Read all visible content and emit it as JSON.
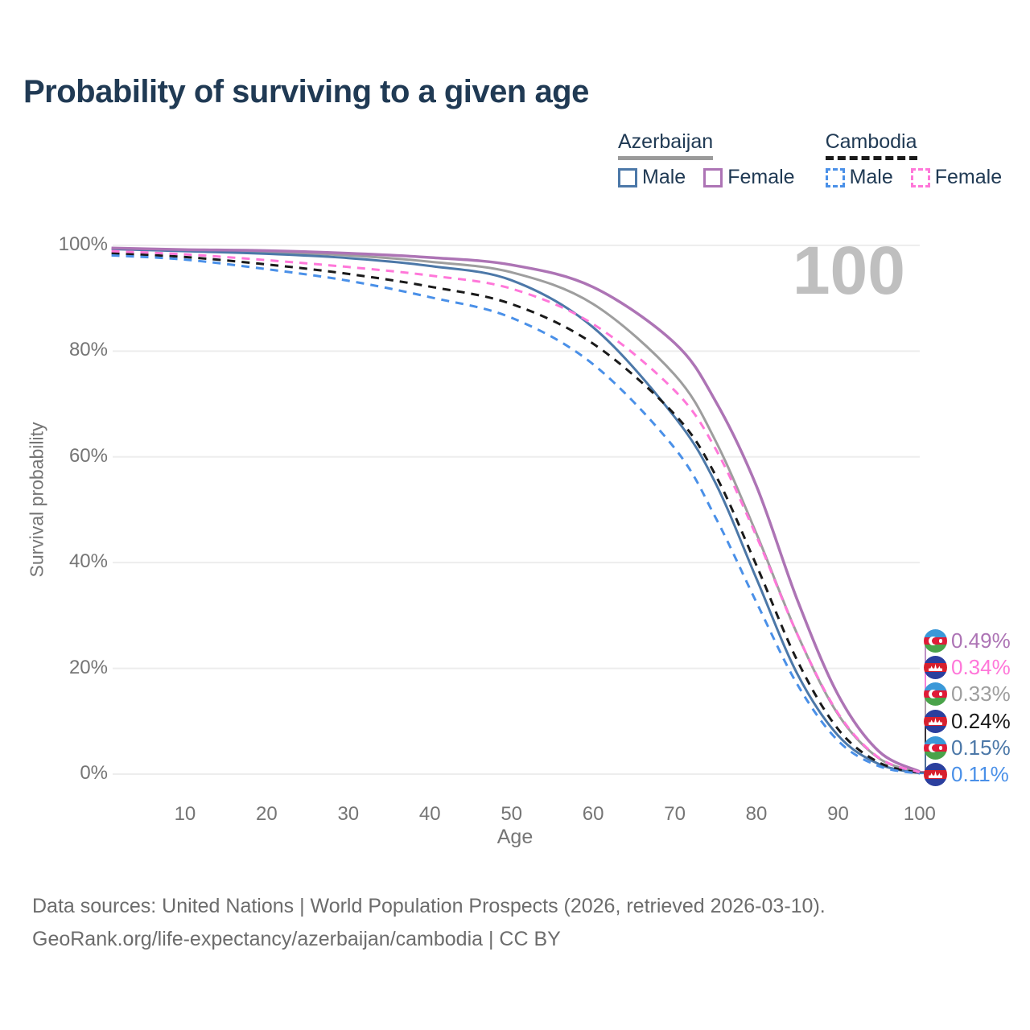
{
  "page": {
    "title": "Probability of surviving to a given age"
  },
  "legend": {
    "groups": [
      {
        "country": "Azerbaijan",
        "underline_style": "solid",
        "underline_color": "#9a9a9a",
        "items": [
          {
            "label": "Male",
            "color": "#4c78a8",
            "style": "solid"
          },
          {
            "label": "Female",
            "color": "#ad74b5",
            "style": "solid"
          }
        ]
      },
      {
        "country": "Cambodia",
        "underline_style": "dashed",
        "underline_color": "#1a1a1a",
        "items": [
          {
            "label": "Male",
            "color": "#4a90e8",
            "style": "dashed"
          },
          {
            "label": "Female",
            "color": "#ff77d9",
            "style": "dashed"
          }
        ]
      }
    ]
  },
  "watermark": "100",
  "chart_data": {
    "type": "line",
    "title": "Probability of surviving to a given age",
    "xlabel": "Age",
    "ylabel": "Survival probability",
    "xlim": [
      0,
      100
    ],
    "ylim": [
      0,
      100
    ],
    "grid": "horizontal",
    "x_ticks": [
      "10",
      "20",
      "30",
      "40",
      "50",
      "60",
      "70",
      "80",
      "90",
      "100"
    ],
    "x_tick_ages": [
      10,
      20,
      30,
      40,
      50,
      60,
      70,
      80,
      90,
      100
    ],
    "y_ticks": [
      "0%",
      "20%",
      "40%",
      "60%",
      "80%",
      "100%"
    ],
    "y_tick_values": [
      0,
      20,
      40,
      60,
      80,
      100
    ],
    "ages": [
      1,
      10,
      20,
      30,
      40,
      50,
      60,
      70,
      75,
      80,
      85,
      90,
      95,
      100
    ],
    "series": [
      {
        "name": "Azerbaijan Female",
        "country": "Azerbaijan",
        "sex": "Female",
        "color": "#ad74b5",
        "dash": "solid",
        "width": 3.5,
        "values": [
          99.5,
          99.2,
          99.0,
          98.5,
          97.7,
          96.3,
          92.1,
          81.5,
          70.5,
          54.5,
          33.0,
          15.0,
          4.3,
          0.49
        ]
      },
      {
        "name": "Azerbaijan Both sexes",
        "country": "Azerbaijan",
        "sex": "Both",
        "color": "#9e9e9e",
        "dash": "solid",
        "width": 3,
        "values": [
          99.4,
          99.0,
          98.7,
          98.1,
          96.9,
          94.9,
          88.9,
          75.5,
          63.0,
          45.5,
          26.5,
          11.3,
          3.0,
          0.33
        ]
      },
      {
        "name": "Azerbaijan Male",
        "country": "Azerbaijan",
        "sex": "Male",
        "color": "#4c78a8",
        "dash": "solid",
        "width": 3,
        "values": [
          99.3,
          98.9,
          98.4,
          97.6,
          96.1,
          93.4,
          84.5,
          67.5,
          55.0,
          37.0,
          19.0,
          7.3,
          1.9,
          0.15
        ]
      },
      {
        "name": "Cambodia Female",
        "country": "Cambodia",
        "sex": "Female",
        "color": "#ff77d9",
        "dash": "dashed",
        "width": 3,
        "values": [
          98.9,
          98.3,
          97.2,
          95.9,
          94.3,
          91.8,
          85.1,
          72.5,
          61.5,
          45.0,
          26.5,
          11.5,
          3.1,
          0.34
        ]
      },
      {
        "name": "Cambodia Both sexes",
        "country": "Cambodia",
        "sex": "Both",
        "color": "#1a1a1a",
        "dash": "dashed",
        "width": 3,
        "values": [
          98.5,
          97.8,
          96.4,
          94.6,
          92.2,
          88.9,
          81.4,
          68.0,
          56.5,
          39.5,
          21.5,
          8.5,
          2.2,
          0.24
        ]
      },
      {
        "name": "Cambodia Male",
        "country": "Cambodia",
        "sex": "Male",
        "color": "#4a90e8",
        "dash": "dashed",
        "width": 3,
        "values": [
          98.1,
          97.3,
          95.5,
          93.3,
          90.2,
          86.3,
          77.5,
          61.6,
          48.5,
          32.5,
          17.0,
          6.3,
          1.5,
          0.11
        ]
      }
    ],
    "end_labels": [
      {
        "flag": "azerbaijan",
        "value": "0.49%",
        "pct": 0.49,
        "color": "#ad74b5",
        "series": "Azerbaijan Female"
      },
      {
        "flag": "cambodia",
        "value": "0.34%",
        "pct": 0.34,
        "color": "#ff77d9",
        "series": "Cambodia Female"
      },
      {
        "flag": "azerbaijan",
        "value": "0.33%",
        "pct": 0.33,
        "color": "#9e9e9e",
        "series": "Azerbaijan Both sexes"
      },
      {
        "flag": "cambodia",
        "value": "0.24%",
        "pct": 0.24,
        "color": "#1a1a1a",
        "series": "Cambodia Both sexes"
      },
      {
        "flag": "azerbaijan",
        "value": "0.15%",
        "pct": 0.15,
        "color": "#4c78a8",
        "series": "Azerbaijan Male"
      },
      {
        "flag": "cambodia",
        "value": "0.11%",
        "pct": 0.11,
        "color": "#4a90e8",
        "series": "Cambodia Male"
      }
    ]
  },
  "footer": {
    "line1": "Data sources: United Nations | World Population Prospects (2026, retrieved 2026-03-10).",
    "line2": "GeoRank.org/life-expectancy/azerbaijan/cambodia | CC BY"
  }
}
